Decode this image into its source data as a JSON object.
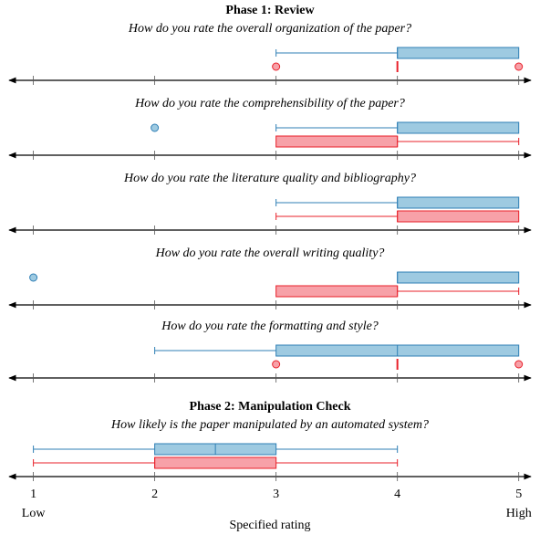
{
  "chart_data": [
    {
      "type": "box",
      "section": "Phase 1: Review",
      "title": "How do you rate the overall organization of the paper?",
      "xlim": [
        0.8,
        5.1
      ],
      "xticks": [
        1,
        2,
        3,
        4,
        5
      ],
      "series": [
        {
          "color": "#2f7fb5",
          "fill": "#9ecae1",
          "min": 3,
          "q1": 4,
          "median": 4,
          "q3": 5,
          "max": 5,
          "outliers": []
        },
        {
          "color": "#e8202a",
          "fill": "#f7a1a8",
          "min": 4,
          "q1": 4,
          "median": 4,
          "q3": 4,
          "max": 4,
          "outliers": [
            3,
            5
          ]
        }
      ]
    },
    {
      "type": "box",
      "title": "How do you rate the comprehensibility of the paper?",
      "xlim": [
        0.8,
        5.1
      ],
      "xticks": [
        1,
        2,
        3,
        4,
        5
      ],
      "series": [
        {
          "color": "#2f7fb5",
          "fill": "#9ecae1",
          "min": 3,
          "q1": 4,
          "median": 4,
          "q3": 5,
          "max": 5,
          "outliers": [
            2
          ]
        },
        {
          "color": "#e8202a",
          "fill": "#f7a1a8",
          "min": 3,
          "q1": 3,
          "median": 4,
          "q3": 4,
          "max": 5,
          "outliers": []
        }
      ]
    },
    {
      "type": "box",
      "title": "How do you rate the literature quality and bibliography?",
      "xlim": [
        0.8,
        5.1
      ],
      "xticks": [
        1,
        2,
        3,
        4,
        5
      ],
      "series": [
        {
          "color": "#2f7fb5",
          "fill": "#9ecae1",
          "min": 3,
          "q1": 4,
          "median": 4,
          "q3": 5,
          "max": 5,
          "outliers": []
        },
        {
          "color": "#e8202a",
          "fill": "#f7a1a8",
          "min": 3,
          "q1": 4,
          "median": 4,
          "q3": 5,
          "max": 5,
          "outliers": []
        }
      ]
    },
    {
      "type": "box",
      "title": "How do you rate the overall writing quality?",
      "xlim": [
        0.8,
        5.1
      ],
      "xticks": [
        1,
        2,
        3,
        4,
        5
      ],
      "series": [
        {
          "color": "#2f7fb5",
          "fill": "#9ecae1",
          "min": 4,
          "q1": 4,
          "median": 4,
          "q3": 5,
          "max": 5,
          "outliers": [
            1
          ]
        },
        {
          "color": "#e8202a",
          "fill": "#f7a1a8",
          "min": 3,
          "q1": 3,
          "median": 4,
          "q3": 4,
          "max": 5,
          "outliers": []
        }
      ]
    },
    {
      "type": "box",
      "title": "How do you rate the formatting and style?",
      "xlim": [
        0.8,
        5.1
      ],
      "xticks": [
        1,
        2,
        3,
        4,
        5
      ],
      "series": [
        {
          "color": "#2f7fb5",
          "fill": "#9ecae1",
          "min": 2,
          "q1": 3,
          "median": 4,
          "q3": 5,
          "max": 5,
          "outliers": []
        },
        {
          "color": "#e8202a",
          "fill": "#f7a1a8",
          "min": 4,
          "q1": 4,
          "median": 4,
          "q3": 4,
          "max": 4,
          "outliers": [
            3,
            5
          ]
        }
      ]
    },
    {
      "type": "box",
      "section": "Phase 2: Manipulation Check",
      "title": "How likely is the paper manipulated by an automated system?",
      "xlim": [
        0.8,
        5.1
      ],
      "xticks": [
        1,
        2,
        3,
        4,
        5
      ],
      "xlabel": "Specified rating",
      "xend_labels": [
        "Low",
        "High"
      ],
      "series": [
        {
          "color": "#2f7fb5",
          "fill": "#9ecae1",
          "min": 1,
          "q1": 2,
          "median": 2.5,
          "q3": 3,
          "max": 4,
          "outliers": []
        },
        {
          "color": "#e8202a",
          "fill": "#f7a1a8",
          "min": 1,
          "q1": 2,
          "median": 2,
          "q3": 3,
          "max": 4,
          "outliers": []
        }
      ]
    }
  ]
}
